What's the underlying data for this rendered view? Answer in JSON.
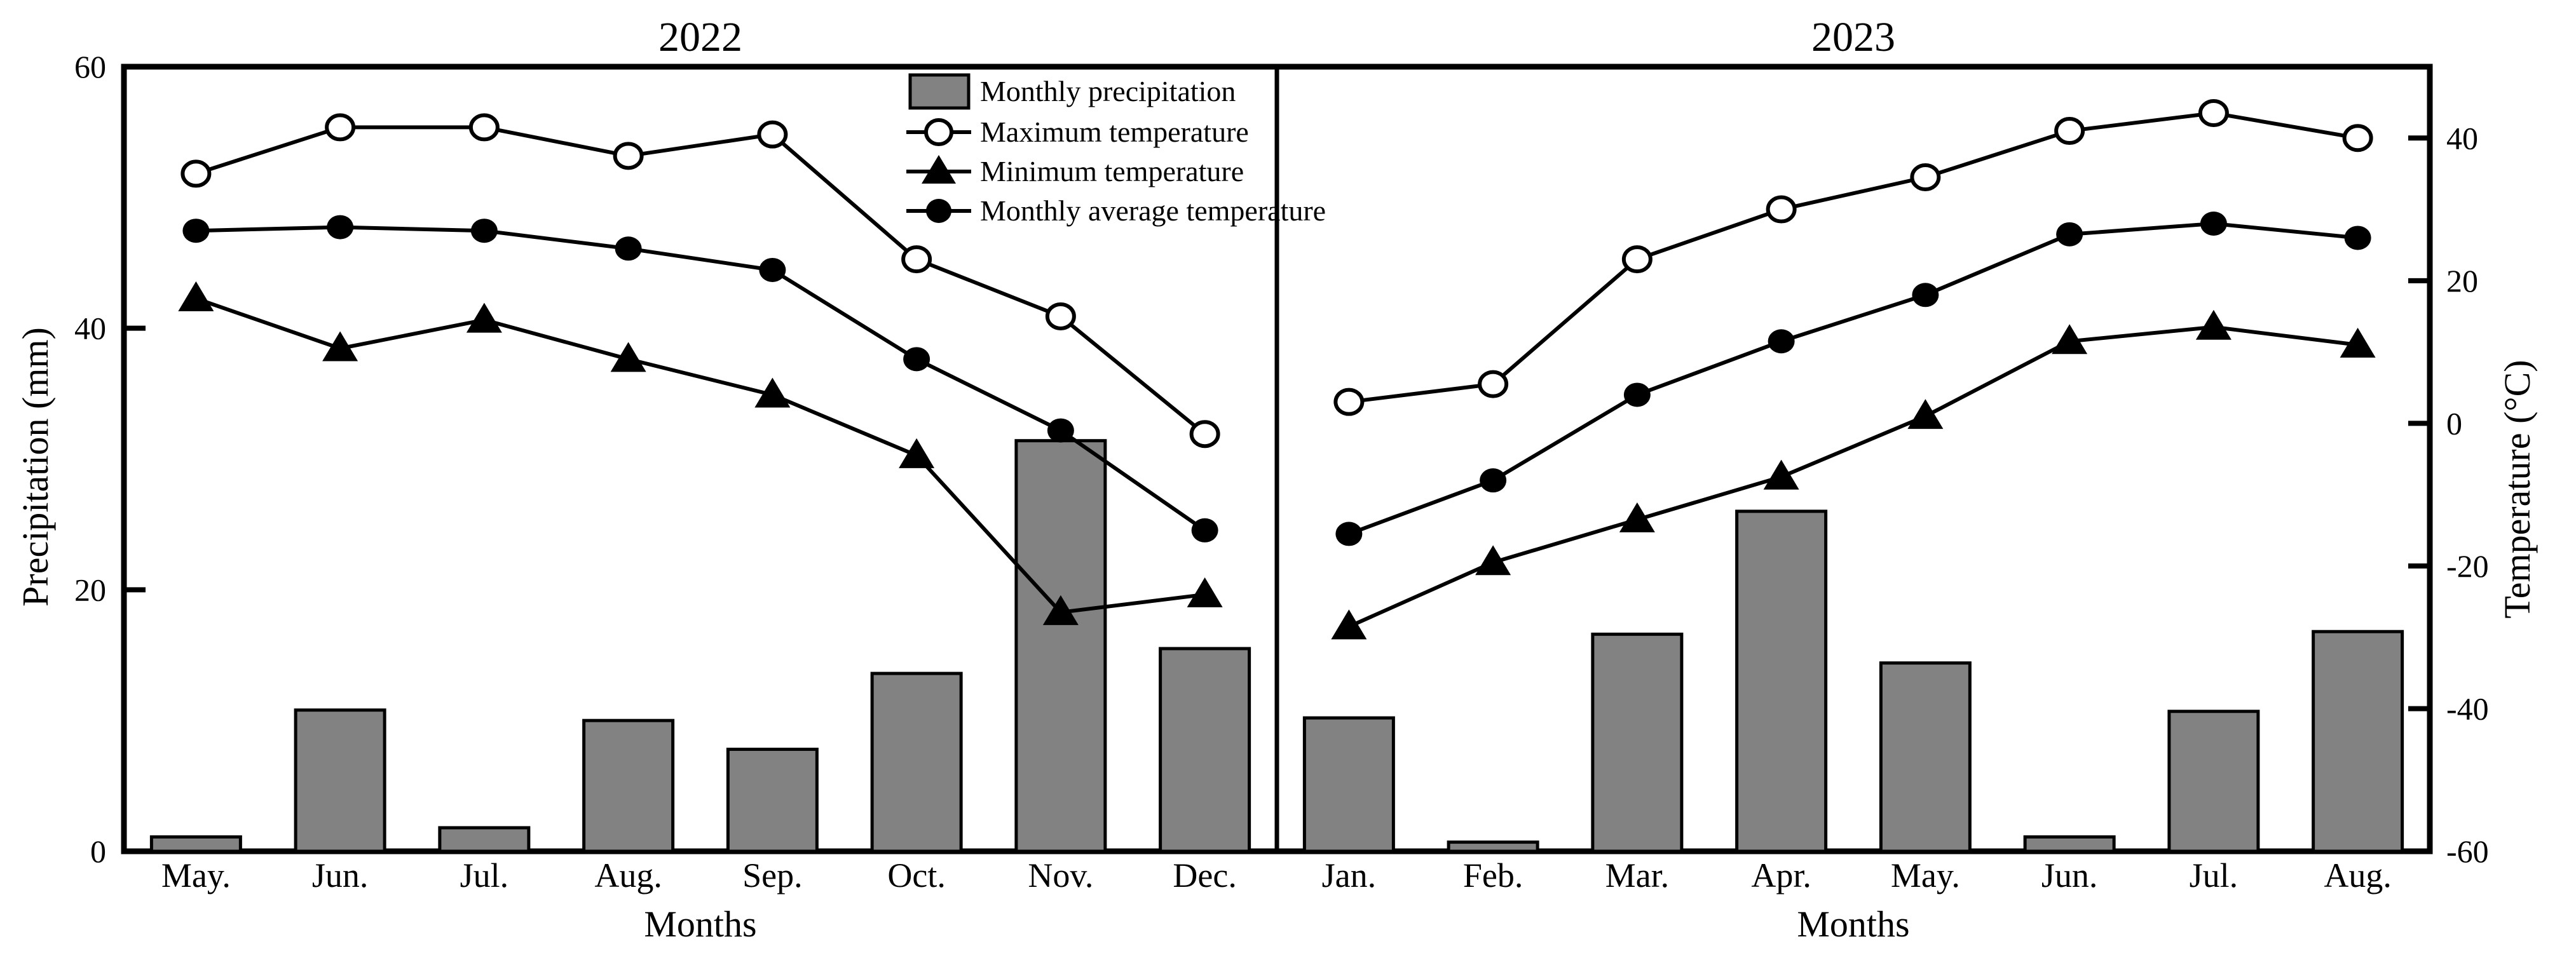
{
  "figure": {
    "left_axis": {
      "label": "Precipitation (mm)",
      "ticks": [
        "0",
        "20",
        "40",
        "60"
      ],
      "tick_values": [
        0,
        20,
        40,
        60
      ],
      "range": [
        0,
        60
      ]
    },
    "right_axis": {
      "label": "Temperature (°C)",
      "ticks": [
        "40",
        "20",
        "0",
        "-20",
        "-40",
        "-60"
      ],
      "tick_values": [
        40,
        20,
        0,
        -20,
        -40,
        -60
      ],
      "range": [
        -60,
        50
      ]
    },
    "legend": [
      {
        "label": "Monthly precipitation",
        "marker": "bar-swatch"
      },
      {
        "label": "Maximum temperature",
        "marker": "open-circle"
      },
      {
        "label": "Minimum temperature",
        "marker": "filled-triangle"
      },
      {
        "label": "Monthly average temperature",
        "marker": "filled-circle"
      }
    ]
  },
  "colors": {
    "bar_fill": "#828282",
    "line": "#000000",
    "background": "#ffffff"
  },
  "chart_data": [
    {
      "type": "combo-bar-line",
      "title": "2022",
      "xlabel": "Months",
      "categories": [
        "May.",
        "Jun.",
        "Jul.",
        "Aug.",
        "Sep.",
        "Oct.",
        "Nov.",
        "Dec."
      ],
      "precip_name": "Monthly precipitation",
      "precip": [
        1.1,
        10.8,
        1.8,
        10.0,
        7.8,
        13.6,
        31.4,
        15.5
      ],
      "series": [
        {
          "key": "max",
          "name": "Maximum temperature",
          "values": [
            35,
            41.5,
            41.5,
            37.5,
            40.5,
            23,
            15,
            -1.5
          ]
        },
        {
          "key": "avg",
          "name": "Monthly average temperature",
          "values": [
            27,
            27.5,
            27,
            24.5,
            21.5,
            9,
            -1,
            -15
          ]
        },
        {
          "key": "min",
          "name": "Minimum temperature",
          "values": [
            17.5,
            10.5,
            14.5,
            9,
            4,
            -4.5,
            -26.5,
            -24
          ]
        }
      ],
      "y_left": {
        "label": "Precipitation (mm)",
        "range": [
          0,
          60
        ],
        "ticks": [
          0,
          20,
          40,
          60
        ]
      },
      "y_right": {
        "label": "Temperature (°C)",
        "range": [
          -60,
          50
        ],
        "ticks": [
          -60,
          -40,
          -20,
          0,
          20,
          40
        ]
      },
      "grid": false,
      "legend_position": "upper-right-inside"
    },
    {
      "type": "combo-bar-line",
      "title": "2023",
      "xlabel": "Months",
      "categories": [
        "Jan.",
        "Feb.",
        "Mar.",
        "Apr.",
        "May.",
        "Jun.",
        "Jul.",
        "Aug."
      ],
      "precip_name": "Monthly precipitation",
      "precip": [
        10.2,
        0.7,
        16.6,
        26.0,
        14.4,
        1.1,
        10.7,
        16.8
      ],
      "series": [
        {
          "key": "max",
          "name": "Maximum temperature",
          "values": [
            3,
            5.5,
            23,
            30,
            34.5,
            41,
            43.5,
            40
          ]
        },
        {
          "key": "avg",
          "name": "Monthly average temperature",
          "values": [
            -15.5,
            -8,
            4,
            11.5,
            18,
            26.5,
            28,
            26
          ]
        },
        {
          "key": "min",
          "name": "Minimum temperature",
          "values": [
            -28.5,
            -19.5,
            -13.5,
            -7.5,
            1,
            11.5,
            13.5,
            11
          ]
        }
      ],
      "y_left": {
        "label": "Precipitation (mm)",
        "range": [
          0,
          60
        ],
        "ticks": [
          0,
          20,
          40,
          60
        ]
      },
      "y_right": {
        "label": "Temperature (°C)",
        "range": [
          -60,
          50
        ],
        "ticks": [
          -60,
          -40,
          -20,
          0,
          20,
          40
        ]
      },
      "grid": false,
      "legend_position": "none"
    }
  ]
}
